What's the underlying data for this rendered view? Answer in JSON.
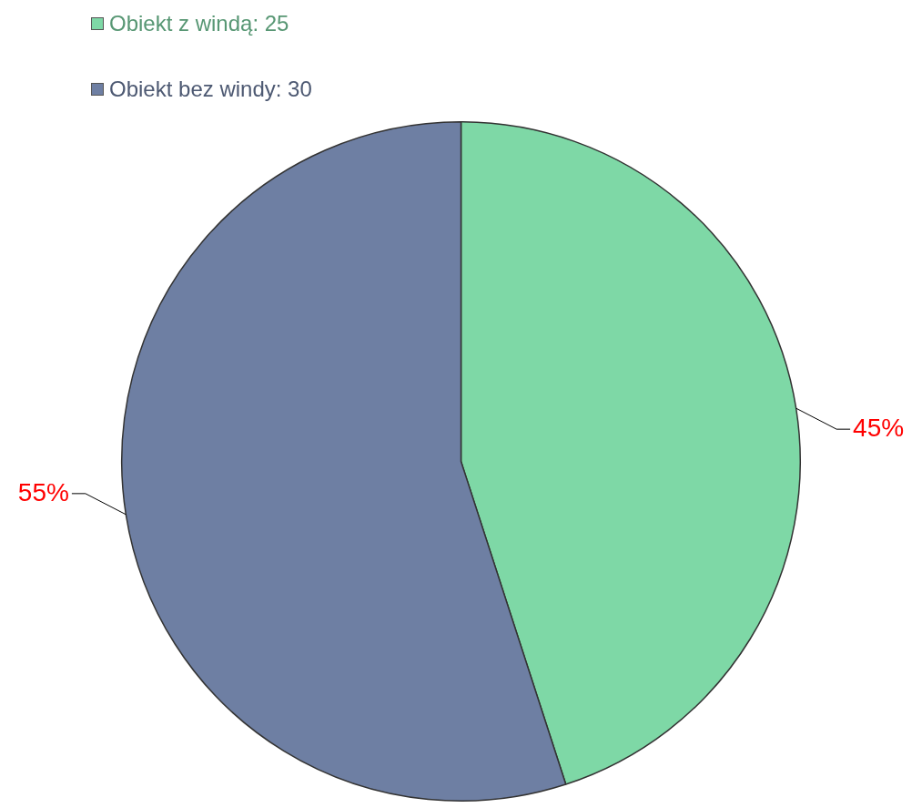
{
  "chart_data": {
    "type": "pie",
    "categories": [
      "Obiekt z windą: 25",
      "Obiekt bez windy: 30"
    ],
    "values": [
      45,
      55
    ],
    "colors": [
      "#7ed8a6",
      "#6e7fa3"
    ],
    "value_labels": [
      "45%",
      "55%"
    ],
    "legend": "top left"
  }
}
